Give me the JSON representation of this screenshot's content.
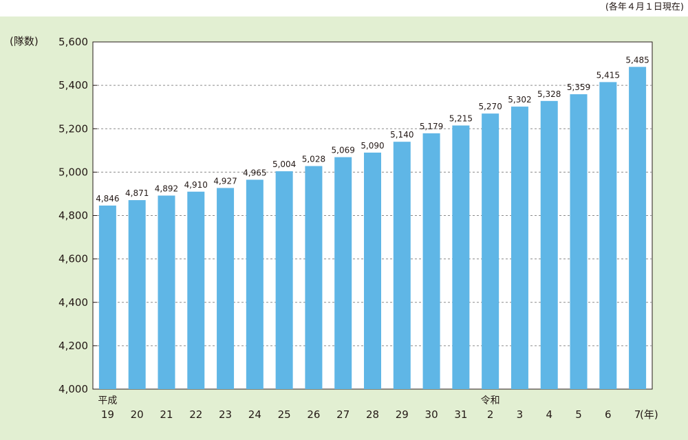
{
  "note": "(各年４月１日現在)",
  "chart_data": {
    "type": "bar",
    "ylabel": "(隊数)",
    "xlabel": "(年)",
    "ylim": [
      4000,
      5600
    ],
    "yticks": [
      4000,
      4200,
      4400,
      4600,
      4800,
      5000,
      5200,
      5400,
      5600
    ],
    "ytick_labels": [
      "4,000",
      "4,200",
      "4,400",
      "4,600",
      "4,800",
      "5,000",
      "5,200",
      "5,400",
      "5,600"
    ],
    "categories": [
      "19",
      "20",
      "21",
      "22",
      "23",
      "24",
      "25",
      "26",
      "27",
      "28",
      "29",
      "30",
      "31",
      "2",
      "3",
      "4",
      "5",
      "6",
      "7"
    ],
    "era_labels": [
      {
        "index": 0,
        "text": "平成"
      },
      {
        "index": 13,
        "text": "令和"
      }
    ],
    "values": [
      4846,
      4871,
      4892,
      4910,
      4927,
      4965,
      5004,
      5028,
      5069,
      5090,
      5140,
      5179,
      5215,
      5270,
      5302,
      5328,
      5359,
      5415,
      5485
    ],
    "value_labels": [
      "4,846",
      "4,871",
      "4,892",
      "4,910",
      "4,927",
      "4,965",
      "5,004",
      "5,028",
      "5,069",
      "5,090",
      "5,140",
      "5,179",
      "5,215",
      "5,270",
      "5,302",
      "5,328",
      "5,359",
      "5,415",
      "5,485"
    ],
    "grid": true,
    "bar_color": "#5fb6e6"
  }
}
